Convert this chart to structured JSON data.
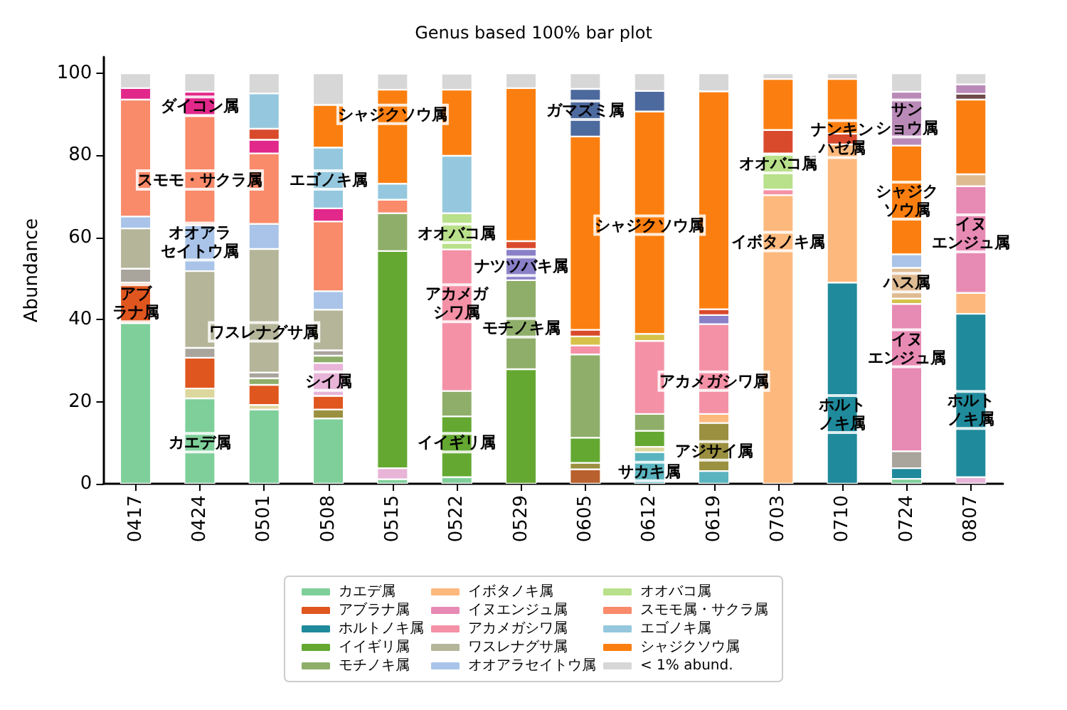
{
  "chart_data": {
    "type": "bar",
    "stacked": true,
    "title": "Genus based 100% bar plot",
    "ylabel": "Abundance",
    "categories": [
      "0417",
      "0424",
      "0501",
      "0508",
      "0515",
      "0522",
      "0529",
      "0605",
      "0612",
      "0619",
      "0703",
      "0710",
      "0724",
      "0807"
    ],
    "ylim": [
      0,
      104
    ],
    "yticks": [
      0,
      20,
      40,
      60,
      80,
      100
    ],
    "grid": false,
    "legend": "bottom",
    "series": [
      {
        "color": "#5ab4bf",
        "values": [
          null,
          null,
          null,
          null,
          null,
          null,
          null,
          null,
          7.7,
          3.1,
          null,
          null,
          null,
          null
        ]
      },
      {
        "name": "カエデ属",
        "color": "#7fcf9a",
        "values": [
          39.1,
          20.8,
          18.1,
          15.9,
          1.1,
          1.6,
          null,
          null,
          null,
          null,
          null,
          null,
          1.2,
          null
        ]
      },
      {
        "color": "#b8602e",
        "values": [
          null,
          null,
          null,
          null,
          null,
          null,
          null,
          3.5,
          null,
          null,
          null,
          null,
          null,
          null
        ]
      },
      {
        "color": "#dcd79c",
        "values": [
          null,
          2.4,
          1.1,
          null,
          null,
          null,
          null,
          null,
          1.3,
          null,
          null,
          null,
          null,
          null
        ]
      },
      {
        "color": "#9a9040",
        "values": [
          null,
          null,
          null,
          2.2,
          null,
          null,
          null,
          1.6,
          null,
          11.7,
          null,
          null,
          null,
          null
        ]
      },
      {
        "name": "アブラナ属",
        "color": "#e0561f",
        "values": [
          9.9,
          7.5,
          4.9,
          3.3,
          null,
          null,
          null,
          null,
          null,
          null,
          null,
          null,
          null,
          null
        ]
      },
      {
        "color": "#e8b4d8",
        "values": [
          null,
          null,
          null,
          8.0,
          2.7,
          null,
          null,
          null,
          null,
          null,
          null,
          null,
          null,
          1.6
        ]
      },
      {
        "name": "ホルトノキ属",
        "color": "#1f8a9c",
        "values": [
          null,
          null,
          null,
          null,
          null,
          null,
          null,
          null,
          null,
          null,
          null,
          49.0,
          2.6,
          39.8
        ]
      },
      {
        "name": "イイギリ属",
        "color": "#64a832",
        "values": [
          null,
          null,
          null,
          null,
          52.9,
          14.8,
          27.9,
          6.1,
          3.9,
          null,
          null,
          null,
          null,
          null
        ]
      },
      {
        "name": "モチノキ属",
        "color": "#8fae6a",
        "values": [
          null,
          null,
          1.6,
          1.8,
          9.2,
          6.2,
          21.7,
          20.3,
          4.1,
          null,
          null,
          null,
          null,
          null
        ]
      },
      {
        "color": "#a9a49c",
        "values": [
          3.4,
          2.4,
          1.4,
          1.3,
          null,
          null,
          null,
          null,
          null,
          null,
          null,
          null,
          4.1,
          null
        ]
      },
      {
        "name": "イボタノキ属",
        "color": "#fdb97d",
        "values": [
          null,
          null,
          null,
          null,
          null,
          null,
          null,
          null,
          null,
          2.2,
          70.3,
          33.7,
          null,
          5.1
        ]
      },
      {
        "name": "イヌエンジュ属",
        "color": "#e78ab4",
        "values": [
          null,
          null,
          null,
          null,
          null,
          null,
          null,
          null,
          null,
          null,
          null,
          null,
          35.9,
          26.0
        ]
      },
      {
        "name": "アカメガシワ属",
        "color": "#f491a6",
        "values": [
          null,
          null,
          null,
          null,
          null,
          34.5,
          null,
          2.2,
          17.8,
          21.9,
          1.4,
          null,
          null,
          null
        ]
      },
      {
        "color": "#d6c24a",
        "values": [
          null,
          null,
          null,
          null,
          null,
          null,
          null,
          2.2,
          1.7,
          null,
          null,
          null,
          1.3,
          null
        ]
      },
      {
        "color": "#dfbb92",
        "values": [
          null,
          null,
          null,
          null,
          null,
          null,
          null,
          null,
          null,
          null,
          null,
          null,
          7.5,
          2.9
        ]
      },
      {
        "name": "ワスレナグサ属",
        "color": "#b5b59a",
        "values": [
          9.8,
          18.7,
          30.1,
          9.9,
          null,
          null,
          null,
          null,
          null,
          null,
          null,
          null,
          null,
          null
        ]
      },
      {
        "name": "オオアラセイトウ属",
        "color": "#a9c4e8",
        "values": [
          2.9,
          11.2,
          6.1,
          4.5,
          null,
          null,
          null,
          null,
          null,
          null,
          null,
          null,
          3.3,
          null
        ]
      },
      {
        "color": "#8a80c8",
        "values": [
          null,
          null,
          null,
          null,
          null,
          null,
          7.6,
          null,
          null,
          2.2,
          null,
          null,
          null,
          null
        ]
      },
      {
        "name": "オオバコ属",
        "color": "#b9e08a",
        "values": [
          null,
          null,
          null,
          null,
          null,
          8.8,
          null,
          null,
          null,
          null,
          8.8,
          null,
          null,
          null
        ]
      },
      {
        "name": "スモモ属・サクラ属",
        "color": "#f98a6a",
        "values": [
          28.5,
          26.6,
          17.2,
          17.0,
          3.3,
          null,
          null,
          null,
          null,
          null,
          null,
          null,
          null,
          null
        ]
      },
      {
        "color": "#e2288a",
        "values": [
          2.8,
          5.9,
          3.3,
          3.2,
          null,
          null,
          null,
          null,
          null,
          null,
          null,
          null,
          null,
          null
        ]
      },
      {
        "color": "#d94a2c",
        "values": [
          null,
          null,
          2.7,
          null,
          null,
          null,
          1.9,
          1.6,
          null,
          1.4,
          5.7,
          2.6,
          null,
          null
        ]
      },
      {
        "name": "エゴノキ属",
        "color": "#95c8de",
        "values": [
          null,
          null,
          8.6,
          14.8,
          3.9,
          14.0,
          null,
          null,
          null,
          null,
          null,
          null,
          null,
          null
        ]
      },
      {
        "name": "シャジクソウ属",
        "color": "#fb7f10",
        "values": [
          null,
          null,
          null,
          10.4,
          22.9,
          16.1,
          37.3,
          47.1,
          54.2,
          53.1,
          12.4,
          13.3,
          26.5,
          18.2
        ]
      },
      {
        "color": "#4d6a9e",
        "values": [
          null,
          null,
          null,
          null,
          null,
          null,
          null,
          11.6,
          5.0,
          null,
          null,
          null,
          null,
          null
        ]
      },
      {
        "color": "#6e4b4b",
        "values": [
          null,
          null,
          null,
          null,
          null,
          null,
          null,
          null,
          null,
          null,
          null,
          null,
          null,
          1.4
        ]
      },
      {
        "color": "#b98ab8",
        "values": [
          null,
          null,
          null,
          null,
          null,
          null,
          null,
          null,
          null,
          null,
          null,
          null,
          13.1,
          2.3
        ]
      },
      {
        "name": "< 1% abund.",
        "color": "#d7d7d7",
        "values": [
          3.6,
          4.5,
          4.9,
          7.7,
          3.9,
          3.9,
          3.6,
          3.8,
          4.3,
          4.4,
          1.4,
          1.4,
          4.5,
          2.7
        ]
      }
    ],
    "annotations": [
      "アブラナ属",
      "カエデ属",
      "ダイコン属",
      "スモモ・サクラ属",
      "オオアラセイトウ属",
      "ワスレナグサ属",
      "シイ属",
      "エゴノキ属",
      "シャジクソウ属",
      "イイギリ属",
      "オオバコ属",
      "アカメガシワ属",
      "ナツツバキ属",
      "モチノキ属",
      "ガマズミ属",
      "シャジクソウ属",
      "アカメガシワ属",
      "アジサイ属",
      "サカキ属",
      "オオバコ属",
      "イボタノキ属",
      "ナンキンハゼ属",
      "ホルトノキ属",
      "サンショウ属",
      "シャジクソウ属",
      "ハス属",
      "イヌエンジュ属",
      "イヌエンジュ属",
      "ホルトノキ属"
    ]
  }
}
